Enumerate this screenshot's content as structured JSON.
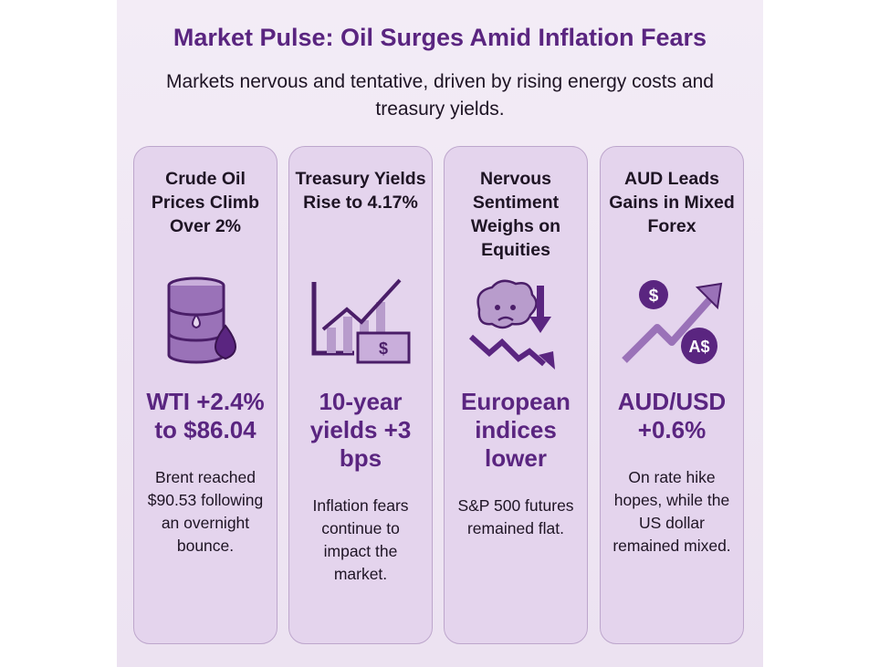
{
  "title": "Market Pulse: Oil Surges Amid Inflation Fears",
  "subtitle": "Markets nervous and tentative, driven by rising energy costs and treasury yields.",
  "colors": {
    "accent": "#5a2580",
    "card": "#e4d4ed",
    "background": "#f0e8f4"
  },
  "cards": [
    {
      "heading": "Crude Oil Prices Climb Over 2%",
      "icon": "oil-barrel-icon",
      "value": "WTI +2.4% to $86.04",
      "description": "Brent reached $90.53 following an overnight bounce."
    },
    {
      "heading": "Treasury Yields Rise to 4.17%",
      "icon": "rising-chart-dollar-icon",
      "value": "10-year yields +3 bps",
      "description": "Inflation fears continue to impact the market."
    },
    {
      "heading": "Nervous Sentiment Weighs on Equities",
      "icon": "worried-brain-down-arrow-icon",
      "value": "European indices lower",
      "description": "S&P 500 futures remained flat."
    },
    {
      "heading": "AUD Leads Gains in Mixed Forex",
      "icon": "currency-up-arrow-icon",
      "value": "AUD/USD +0.6%",
      "description": "On rate hike hopes, while the US dollar remained mixed.",
      "icon_labels": [
        "$",
        "A$"
      ]
    }
  ]
}
